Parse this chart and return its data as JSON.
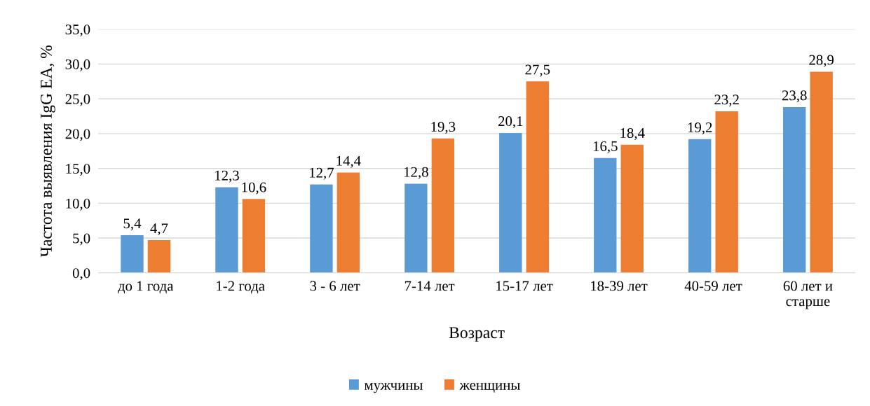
{
  "chart_data": {
    "type": "bar",
    "xlabel": "Возраст",
    "ylabel": "Частота выявления IgG EA, %",
    "categories": [
      "до 1 года",
      "1-2 года",
      "3 - 6 лет",
      "7-14 лет",
      "15-17 лет",
      "18-39 лет",
      "40-59 лет",
      "60 лет и\nстарше"
    ],
    "series": [
      {
        "name": "мужчины",
        "color": "#5b9bd5",
        "values": [
          5.4,
          12.3,
          12.7,
          12.8,
          20.1,
          16.5,
          19.2,
          23.8
        ],
        "value_labels": [
          "5,4",
          "12,3",
          "12,7",
          "12,8",
          "20,1",
          "16,5",
          "19,2",
          "23,8"
        ]
      },
      {
        "name": "женщины",
        "color": "#ed7d31",
        "values": [
          4.7,
          10.6,
          14.4,
          19.3,
          27.5,
          18.4,
          23.2,
          28.9
        ],
        "value_labels": [
          "4,7",
          "10,6",
          "14,4",
          "19,3",
          "27,5",
          "18,4",
          "23,2",
          "28,9"
        ]
      }
    ],
    "ylim": [
      0,
      35
    ],
    "yticks": [
      {
        "value": 0,
        "label": "0,0"
      },
      {
        "value": 5,
        "label": "5,0"
      },
      {
        "value": 10,
        "label": "10,0"
      },
      {
        "value": 15,
        "label": "15,0"
      },
      {
        "value": 20,
        "label": "20,0"
      },
      {
        "value": 25,
        "label": "25,0"
      },
      {
        "value": 30,
        "label": "30,0"
      },
      {
        "value": 35,
        "label": "35,0"
      }
    ],
    "grid": "y",
    "legend": "bottom"
  }
}
